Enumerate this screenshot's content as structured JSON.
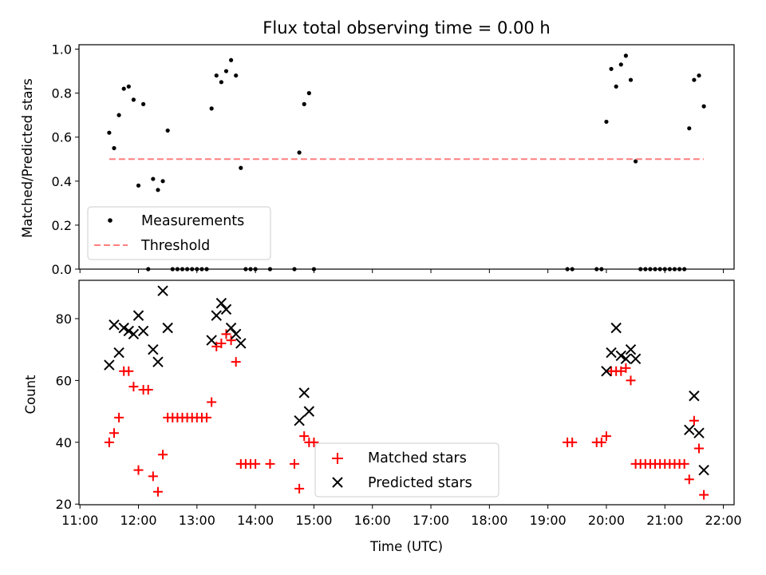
{
  "chart_data": [
    {
      "type": "scatter",
      "title": "Flux total observing time = 0.00 h",
      "xlabel": "",
      "ylabel": "Matched/Predicted stars",
      "xlim": [
        "10:59",
        "22:11"
      ],
      "ylim": [
        0,
        1.02
      ],
      "xticks": [
        "11:00",
        "12:00",
        "13:00",
        "14:00",
        "15:00",
        "16:00",
        "17:00",
        "18:00",
        "19:00",
        "20:00",
        "21:00",
        "22:00"
      ],
      "yticks": [
        "0.0",
        "0.2",
        "0.4",
        "0.6",
        "0.8",
        "1.0"
      ],
      "legend": {
        "placement": "lower-left",
        "entries": [
          "Measurements",
          "Threshold"
        ]
      },
      "series": [
        {
          "name": "Measurements",
          "marker": "dot",
          "color": "#000000",
          "points": [
            [
              "11:30",
              0.62
            ],
            [
              "11:35",
              0.55
            ],
            [
              "11:40",
              0.7
            ],
            [
              "11:45",
              0.82
            ],
            [
              "11:50",
              0.83
            ],
            [
              "11:55",
              0.77
            ],
            [
              "12:00",
              0.38
            ],
            [
              "12:05",
              0.75
            ],
            [
              "12:10",
              0.0
            ],
            [
              "12:15",
              0.41
            ],
            [
              "12:20",
              0.36
            ],
            [
              "12:25",
              0.4
            ],
            [
              "12:30",
              0.63
            ],
            [
              "12:35",
              0.0
            ],
            [
              "12:40",
              0.0
            ],
            [
              "12:45",
              0.0
            ],
            [
              "12:50",
              0.0
            ],
            [
              "12:55",
              0.0
            ],
            [
              "13:00",
              0.0
            ],
            [
              "13:05",
              0.0
            ],
            [
              "13:10",
              0.0
            ],
            [
              "13:15",
              0.73
            ],
            [
              "13:20",
              0.88
            ],
            [
              "13:25",
              0.85
            ],
            [
              "13:30",
              0.9
            ],
            [
              "13:35",
              0.95
            ],
            [
              "13:40",
              0.88
            ],
            [
              "13:45",
              0.46
            ],
            [
              "13:50",
              0.0
            ],
            [
              "13:55",
              0.0
            ],
            [
              "14:00",
              0.0
            ],
            [
              "14:15",
              0.0
            ],
            [
              "14:40",
              0.0
            ],
            [
              "14:45",
              0.53
            ],
            [
              "14:50",
              0.75
            ],
            [
              "14:55",
              0.8
            ],
            [
              "15:00",
              0.0
            ],
            [
              "19:20",
              0.0
            ],
            [
              "19:25",
              0.0
            ],
            [
              "19:50",
              0.0
            ],
            [
              "19:55",
              0.0
            ],
            [
              "20:00",
              0.67
            ],
            [
              "20:05",
              0.91
            ],
            [
              "20:10",
              0.83
            ],
            [
              "20:15",
              0.93
            ],
            [
              "20:20",
              0.97
            ],
            [
              "20:25",
              0.86
            ],
            [
              "20:30",
              0.49
            ],
            [
              "20:35",
              0.0
            ],
            [
              "20:40",
              0.0
            ],
            [
              "20:45",
              0.0
            ],
            [
              "20:50",
              0.0
            ],
            [
              "20:55",
              0.0
            ],
            [
              "21:00",
              0.0
            ],
            [
              "21:05",
              0.0
            ],
            [
              "21:10",
              0.0
            ],
            [
              "21:15",
              0.0
            ],
            [
              "21:20",
              0.0
            ],
            [
              "21:25",
              0.64
            ],
            [
              "21:30",
              0.86
            ],
            [
              "21:35",
              0.88
            ],
            [
              "21:40",
              0.74
            ]
          ]
        },
        {
          "name": "Threshold",
          "marker": "dashed-line",
          "color": "#ff7f7f",
          "points": [
            [
              "11:30",
              0.5
            ],
            [
              "21:40",
              0.5
            ]
          ]
        }
      ]
    },
    {
      "type": "scatter",
      "title": "",
      "xlabel": "Time (UTC)",
      "ylabel": "Count",
      "xlim": [
        "10:59",
        "22:11"
      ],
      "ylim": [
        19.8,
        92.4
      ],
      "xticks": [
        "11:00",
        "12:00",
        "13:00",
        "14:00",
        "15:00",
        "16:00",
        "17:00",
        "18:00",
        "19:00",
        "20:00",
        "21:00",
        "22:00"
      ],
      "yticks": [
        "20",
        "40",
        "60",
        "80"
      ],
      "legend": {
        "placement": "lower-center",
        "entries": [
          "Matched stars",
          "Predicted stars"
        ]
      },
      "series": [
        {
          "name": "Matched stars",
          "marker": "plus",
          "color": "#ff0000",
          "points": [
            [
              "11:30",
              40
            ],
            [
              "11:35",
              43
            ],
            [
              "11:40",
              48
            ],
            [
              "11:45",
              63
            ],
            [
              "11:50",
              63
            ],
            [
              "11:55",
              58
            ],
            [
              "12:00",
              31
            ],
            [
              "12:05",
              57
            ],
            [
              "12:10",
              57
            ],
            [
              "12:15",
              29
            ],
            [
              "12:20",
              24
            ],
            [
              "12:25",
              36
            ],
            [
              "12:30",
              48
            ],
            [
              "12:35",
              48
            ],
            [
              "12:40",
              48
            ],
            [
              "12:45",
              48
            ],
            [
              "12:50",
              48
            ],
            [
              "12:55",
              48
            ],
            [
              "13:00",
              48
            ],
            [
              "13:05",
              48
            ],
            [
              "13:10",
              48
            ],
            [
              "13:15",
              53
            ],
            [
              "13:20",
              71
            ],
            [
              "13:25",
              72
            ],
            [
              "13:30",
              75
            ],
            [
              "13:35",
              73
            ],
            [
              "13:40",
              66
            ],
            [
              "13:45",
              33
            ],
            [
              "13:50",
              33
            ],
            [
              "13:55",
              33
            ],
            [
              "14:00",
              33
            ],
            [
              "14:15",
              33
            ],
            [
              "14:40",
              33
            ],
            [
              "14:45",
              25
            ],
            [
              "14:50",
              42
            ],
            [
              "14:55",
              40
            ],
            [
              "15:00",
              40
            ],
            [
              "19:20",
              40
            ],
            [
              "19:25",
              40
            ],
            [
              "19:50",
              40
            ],
            [
              "19:55",
              40
            ],
            [
              "20:00",
              42
            ],
            [
              "20:05",
              63
            ],
            [
              "20:10",
              63
            ],
            [
              "20:15",
              63
            ],
            [
              "20:20",
              64
            ],
            [
              "20:25",
              60
            ],
            [
              "20:30",
              33
            ],
            [
              "20:35",
              33
            ],
            [
              "20:40",
              33
            ],
            [
              "20:45",
              33
            ],
            [
              "20:50",
              33
            ],
            [
              "20:55",
              33
            ],
            [
              "21:00",
              33
            ],
            [
              "21:05",
              33
            ],
            [
              "21:10",
              33
            ],
            [
              "21:15",
              33
            ],
            [
              "21:20",
              33
            ],
            [
              "21:25",
              28
            ],
            [
              "21:30",
              47
            ],
            [
              "21:35",
              38
            ],
            [
              "21:40",
              23
            ]
          ]
        },
        {
          "name": "Predicted stars",
          "marker": "x",
          "color": "#000000",
          "points": [
            [
              "11:30",
              65
            ],
            [
              "11:35",
              78
            ],
            [
              "11:40",
              69
            ],
            [
              "11:45",
              77
            ],
            [
              "11:50",
              76
            ],
            [
              "11:55",
              75
            ],
            [
              "12:00",
              81
            ],
            [
              "12:05",
              76
            ],
            [
              "12:15",
              70
            ],
            [
              "12:20",
              66
            ],
            [
              "12:25",
              89
            ],
            [
              "12:30",
              77
            ],
            [
              "13:15",
              73
            ],
            [
              "13:20",
              81
            ],
            [
              "13:25",
              85
            ],
            [
              "13:30",
              83
            ],
            [
              "13:35",
              77
            ],
            [
              "13:40",
              75
            ],
            [
              "13:45",
              72
            ],
            [
              "14:45",
              47
            ],
            [
              "14:50",
              56
            ],
            [
              "14:55",
              50
            ],
            [
              "20:00",
              63
            ],
            [
              "20:05",
              69
            ],
            [
              "20:10",
              77
            ],
            [
              "20:15",
              68
            ],
            [
              "20:20",
              67
            ],
            [
              "20:25",
              70
            ],
            [
              "20:30",
              67
            ],
            [
              "21:25",
              44
            ],
            [
              "21:30",
              55
            ],
            [
              "21:35",
              43
            ],
            [
              "21:40",
              31
            ]
          ]
        }
      ]
    }
  ]
}
